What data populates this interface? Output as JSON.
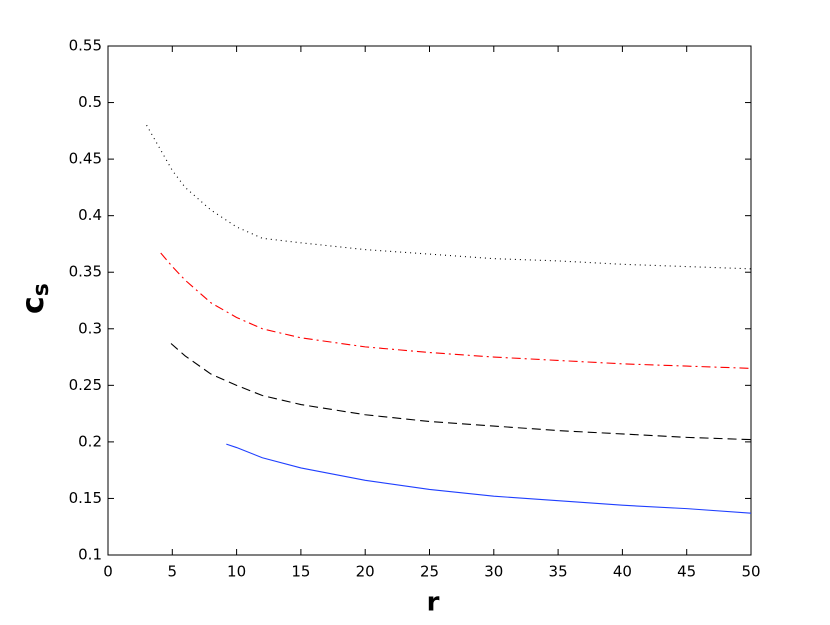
{
  "chart_data": {
    "type": "line",
    "xlabel": "r",
    "ylabel": {
      "base": "c",
      "subscript": "s"
    },
    "xlim": [
      0,
      50
    ],
    "xticks": [
      0,
      5,
      10,
      15,
      20,
      25,
      30,
      35,
      40,
      45,
      50
    ],
    "ylim": [
      0.1,
      0.55
    ],
    "yticks": [
      0.1,
      0.15,
      0.2,
      0.25,
      0.3,
      0.35,
      0.4,
      0.45,
      0.5,
      0.55
    ],
    "series": [
      {
        "color": "#000000",
        "style": "dotted",
        "x": [
          3,
          4,
          5,
          6,
          8,
          10,
          12,
          15,
          20,
          25,
          30,
          35,
          40,
          45,
          50
        ],
        "values": [
          0.48,
          0.46,
          0.44,
          0.425,
          0.405,
          0.39,
          0.38,
          0.376,
          0.37,
          0.366,
          0.362,
          0.36,
          0.357,
          0.355,
          0.353
        ]
      },
      {
        "color": "#ff0000",
        "style": "dashdot",
        "x": [
          4.1,
          5,
          6,
          8,
          10,
          12,
          15,
          20,
          25,
          30,
          35,
          40,
          45,
          50
        ],
        "values": [
          0.367,
          0.355,
          0.343,
          0.323,
          0.31,
          0.3,
          0.292,
          0.284,
          0.279,
          0.275,
          0.272,
          0.269,
          0.267,
          0.265
        ]
      },
      {
        "color": "#000000",
        "style": "dashed",
        "x": [
          4.9,
          6,
          8,
          10,
          12,
          15,
          20,
          25,
          30,
          35,
          40,
          45,
          50
        ],
        "values": [
          0.287,
          0.276,
          0.26,
          0.25,
          0.241,
          0.233,
          0.224,
          0.218,
          0.214,
          0.21,
          0.207,
          0.204,
          0.202
        ]
      },
      {
        "color": "#1f3fff",
        "style": "solid",
        "x": [
          9.2,
          10,
          12,
          15,
          20,
          25,
          30,
          35,
          40,
          45,
          50
        ],
        "values": [
          0.198,
          0.195,
          0.186,
          0.177,
          0.166,
          0.158,
          0.152,
          0.148,
          0.144,
          0.141,
          0.137
        ]
      }
    ]
  }
}
